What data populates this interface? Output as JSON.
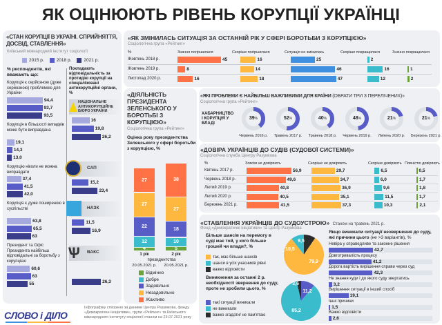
{
  "title": "ЯК ОЦІНЮЮТЬ РІВЕНЬ КОРУПЦІЇ УКРАЇНЦІ",
  "colors": {
    "y2015": "#a6a9dd",
    "y2018": "#575cc6",
    "y2021": "#3a3e8a",
    "orange": "#ff7246",
    "yellow": "#ffb83f",
    "blue": "#3f8fe0",
    "teal": "#3bbccd",
    "green": "#6aa336",
    "dark": "#2b2b2b"
  },
  "state": {
    "title": "«СТАН КОРУПЦІЇ В УКРАЇНІ. СПРИЙНЯТТЯ, ДОСВІД, СТАВЛЕННЯ»",
    "source": "Київський міжнародний інститут соціології",
    "legend": [
      "2015 р.",
      "2018 р.",
      "2021 р."
    ],
    "left_header": "% респондентів, які вважають що:",
    "groups": [
      {
        "label": "Корупція є серйозною (дуже серйозною) проблемою для України",
        "values": [
          "94,4",
          "93,7",
          "93,5"
        ],
        "nums": [
          94.4,
          93.7,
          93.5
        ]
      },
      {
        "label": "Корупція в більшості випадків може бути виправдана",
        "values": [
          "19,1",
          "14,3",
          "13,0"
        ],
        "nums": [
          19.1,
          14.3,
          13.0
        ]
      },
      {
        "label": "Корупцію ніколи не можна виправдати",
        "values": [
          "37,4",
          "41,5",
          "42,0"
        ],
        "nums": [
          37.4,
          41.5,
          42.0
        ]
      },
      {
        "label": "Корупція є дуже поширеною в суспільстві",
        "values": [
          "63,8",
          "65,5",
          "63"
        ],
        "nums": [
          63.8,
          65.5,
          63
        ]
      },
      {
        "label": "Президент та Офіс Президента найбільш відповідальні за боротьбу з корупцією",
        "values": [
          "60,6",
          "63",
          "55"
        ],
        "nums": [
          60.6,
          63,
          55
        ]
      }
    ],
    "right_header": "Покладають відповідальність за протидію корупції на спеціалізовані антикорупційні органи, %",
    "agencies": [
      {
        "name": "НАЦІОНАЛЬНЕ АНТИКОРУПЦІЙНЕ БЮРО УКРАЇНИ",
        "years": [
          "y2015",
          "y2018",
          "y2021"
        ],
        "values": [
          "16",
          "19,8",
          "26,2"
        ],
        "nums": [
          16,
          19.8,
          26.2
        ]
      },
      {
        "name": "САП",
        "years": [
          "y2018",
          "y2021"
        ],
        "values": [
          "15,2",
          "23,4"
        ],
        "nums": [
          15.2,
          23.4
        ]
      },
      {
        "name": "НАЗК",
        "years": [
          "y2018",
          "y2021"
        ],
        "values": [
          "11,5",
          "16,9"
        ],
        "nums": [
          11.5,
          16.9
        ]
      },
      {
        "name": "ВАКС",
        "years": [
          "y2021"
        ],
        "values": [
          "26,3"
        ],
        "nums": [
          26.3
        ]
      }
    ]
  },
  "change": {
    "title": "«ЯК ЗМІНИЛАСЬ СИТУАЦІЯ ЗА ОСТАННІЙ РІК У СФЕРІ БОРОТЬБИ З КОРУПЦІЄЮ»",
    "source": "Соціологічна група «Рейтинг»",
    "unit": "%",
    "columns": [
      "Значно погіршилася",
      "Скоріше погіршилася",
      "Ситуація не змінилась",
      "Скоріше покращилася",
      "Значно покращилася"
    ],
    "rows": [
      {
        "label": "Жовтень 2018 р.",
        "values": [
          45,
          16,
          25,
          2,
          null
        ]
      },
      {
        "label": "Жовтень 2019 р.",
        "values": [
          8,
          14,
          46,
          16,
          1
        ]
      },
      {
        "label": "Листопад 2020 р.",
        "values": [
          16,
          18,
          47,
          12,
          2
        ]
      }
    ]
  },
  "zelensky": {
    "title": "«ДІЯЛЬНІСТЬ ПРЕЗИДЕНТА ЗЕЛЕНСЬКОГО У БОРОТЬБІ З КОРУПЦІЄЮ»",
    "source": "Соціологічна група «Рейтинг»",
    "subtitle": "Оцінка року президентства Зеленського у сфері боротьби з корупцією, %",
    "categories": [
      "Відмінно",
      "Добре",
      "Задовільно",
      "Незадовільно",
      "Жахливо"
    ],
    "bars": [
      {
        "label": "1 рік",
        "values": [
          4,
          12,
          22,
          27,
          27
        ]
      },
      {
        "label": "2 рік",
        "values": [
          5,
          10,
          18,
          27,
          38
        ]
      }
    ],
    "presidency": "президентства",
    "dates": [
      "20.05.2021 р.",
      "20.05.2021 р."
    ]
  },
  "problems": {
    "title": "«ЯКІ ПРОБЛЕМИ Є НАЙБІЛЬШ ВАЖЛИВИМИ ДЛЯ КРАЇНИ",
    "title_note": "(ОБРАТИ ТРИ З ПЕРЕЛІЧЕНИХ)»",
    "source": "Соціологічна група «Рейтинг»",
    "row_label": "ХАБАРНИЦТВО І КОРУПЦІЯ У ВЛАДІ",
    "items": [
      {
        "date": "Червень 2016 р.",
        "value": 39
      },
      {
        "date": "Травень 2017 р.",
        "value": 52
      },
      {
        "date": "Травень 2018 р.",
        "value": 40
      },
      {
        "date": "Червень 2019 р.",
        "value": 48
      },
      {
        "date": "Липень 2020 р.",
        "value": 21
      },
      {
        "date": "Березень 2021 р.",
        "value": 21
      }
    ]
  },
  "trust": {
    "title": "«ДОВІРА УКРАЇНЦІВ ДО СУДІВ (СУДОВОЇ СИСТЕМИ)»",
    "source": "Соціологічна служба Центру Разумкова",
    "unit": "%",
    "columns": [
      "Зовсім не довіряють",
      "Скоріше не довіряють",
      "Скоріше довіряють",
      "Повністю довіряють"
    ],
    "rows": [
      {
        "label": "Квітень 2017 р.",
        "values": [
          "56,9",
          "29,7",
          "6,5",
          "0,5"
        ],
        "nums": [
          56.9,
          29.7,
          6.5,
          0.5
        ]
      },
      {
        "label": "Червень 2018 р.",
        "values": [
          "49,6",
          "34,7",
          "6,0",
          "1,7"
        ],
        "nums": [
          49.6,
          34.7,
          6.0,
          1.7
        ]
      },
      {
        "label": "Лютий 2019 р.",
        "values": [
          "40,8",
          "36,9",
          "9,6",
          "1,8"
        ],
        "nums": [
          40.8,
          36.9,
          9.6,
          1.8
        ]
      },
      {
        "label": "Лютий 2020 р.",
        "values": [
          "40,5",
          "35,1",
          "11,5",
          "1,7"
        ],
        "nums": [
          40.5,
          35.1,
          11.5,
          1.7
        ]
      },
      {
        "label": "Березень 2021 р.",
        "values": [
          "41,5",
          "37,3",
          "10,3",
          "2,1"
        ],
        "nums": [
          41.5,
          37.3,
          10.3,
          2.1
        ]
      }
    ]
  },
  "attitude": {
    "title": "«СТАВЛЕННЯ УКРАЇНЦІВ ДО СУДОУСТРОЮ»",
    "as_of": "Станом на травень 2021 р.",
    "source": "Фонд «Демократичні ініціативи» та Центр Разумкова",
    "q1": {
      "question": "Більше шансів на перемогу в суді має той, у кого більше грошей чи влади?, %",
      "legend": [
        "так, має більше шансів",
        "шанси в усіх учасників рівні",
        "важко відповісти"
      ],
      "values": [
        "79,9",
        "10,5",
        "9,5"
      ],
      "nums": [
        79.9,
        10.5,
        9.5
      ]
    },
    "q2": {
      "question": "Виникнення за останні 2 р. необхідності звернення до суду, проте не зробили цього, %",
      "legend": [
        "такі ситуації виникали",
        "не виникали",
        "важко згадати/ не пам'ятаю"
      ],
      "values": [
        "11,2",
        "85,2",
        "3,6"
      ],
      "nums": [
        11.2,
        85.2,
        3.6
      ]
    },
    "q3": {
      "question": "Якщо виникали ситуації незвернення до суду, які причини цього",
      "question_note": "(не >3 варіантів), %",
      "items": [
        {
          "label": "Невіра у справедливе та законне рішення",
          "value": "42,7",
          "num": 42.7
        },
        {
          "label": "Довготривалість процесу",
          "value": "41,2",
          "num": 41.2
        },
        {
          "label": "Дорога вартість вирішення справи через суд",
          "value": "42,3",
          "num": 42.3
        },
        {
          "label": "Не знання куди і до якого суду звертатись",
          "value": "3,2",
          "num": 3.2
        },
        {
          "label": "Вирішення ситуації в інший спосіб",
          "value": "19,1",
          "num": 19.1
        },
        {
          "label": "Інші причини",
          "value": "1,5",
          "num": 1.5
        },
        {
          "label": "Важко відповісти",
          "value": "2,6",
          "num": 2.6
        }
      ]
    }
  },
  "footer": {
    "logo": "СЛОВО і ДІЛО",
    "note": "Інфографіку створено за даними Центру Разумкова, фонду «Демократичні ініціативи», групи «Рейтинг» та Київського міжнародного інституту соціології станом на 23.07.2021 року"
  }
}
